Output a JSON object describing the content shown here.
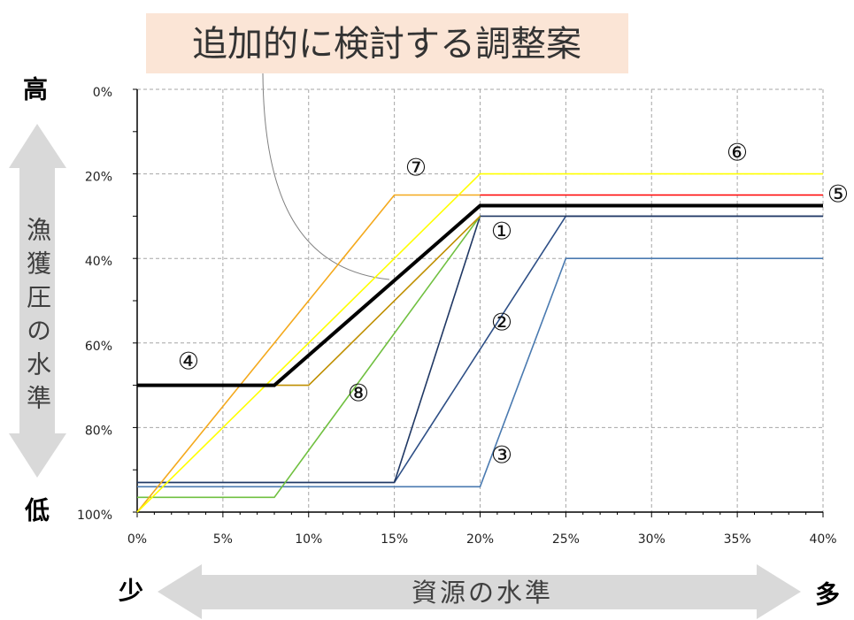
{
  "chart_data": {
    "type": "line",
    "title": "追加的に検討する調整案",
    "xlabel": "資源の水準",
    "ylabel": "漁獲圧の水準",
    "x_low_label": "少",
    "x_high_label": "多",
    "y_high_label": "高",
    "y_low_label": "低",
    "xlim": [
      0,
      40
    ],
    "ylim": [
      0,
      100
    ],
    "y_reversed": true,
    "grid": true,
    "x_ticks": [
      0,
      5,
      10,
      15,
      20,
      25,
      30,
      35,
      40
    ],
    "x_tick_labels": [
      "0%",
      "5%",
      "10%",
      "15%",
      "20%",
      "25%",
      "30%",
      "35%",
      "40%"
    ],
    "y_ticks": [
      0,
      20,
      40,
      60,
      80,
      100
    ],
    "y_tick_labels": [
      "0%",
      "20%",
      "40%",
      "60%",
      "80%",
      "100%"
    ],
    "series": [
      {
        "name": "①",
        "color": "#203864",
        "points": [
          [
            0,
            93
          ],
          [
            15,
            93
          ],
          [
            20,
            30
          ],
          [
            40,
            30
          ]
        ]
      },
      {
        "name": "②",
        "color": "#2e4f86",
        "points": [
          [
            0,
            93
          ],
          [
            15,
            93
          ],
          [
            25,
            30
          ],
          [
            40,
            30
          ]
        ]
      },
      {
        "name": "③",
        "color": "#4a7ab0",
        "points": [
          [
            0,
            94
          ],
          [
            20,
            94
          ],
          [
            25,
            40
          ],
          [
            40,
            40
          ]
        ]
      },
      {
        "name": "④",
        "color": "#bf8f00",
        "points": [
          [
            0,
            70
          ],
          [
            10,
            70
          ],
          [
            20,
            30
          ]
        ]
      },
      {
        "name": "⑤",
        "color": "#ff0000",
        "points": [
          [
            20,
            25
          ],
          [
            40,
            25
          ]
        ]
      },
      {
        "name": "⑥",
        "color": "#ffff00",
        "points": [
          [
            0,
            100
          ],
          [
            20,
            20
          ],
          [
            40,
            20
          ]
        ]
      },
      {
        "name": "⑦",
        "color": "#f4a91c",
        "points": [
          [
            0,
            100
          ],
          [
            15,
            25
          ],
          [
            20,
            25
          ]
        ]
      },
      {
        "name": "⑧",
        "color": "#70c040",
        "points": [
          [
            0,
            96.5
          ],
          [
            8,
            96.5
          ],
          [
            20,
            30
          ]
        ]
      },
      {
        "color": "#000000",
        "points": [
          [
            0,
            70
          ],
          [
            8,
            70
          ],
          [
            20,
            27.5
          ],
          [
            40,
            27.5
          ]
        ]
      }
    ]
  },
  "colors": {
    "title_box": "#fbe5d6",
    "arrow": "#d9d9d9",
    "callout": "#808080"
  }
}
